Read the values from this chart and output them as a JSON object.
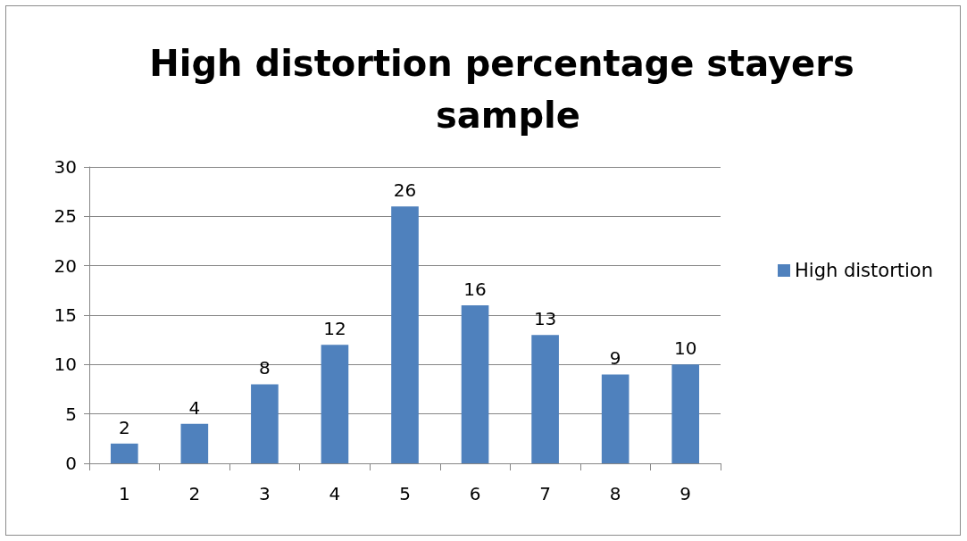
{
  "chart_data": {
    "type": "bar",
    "title": "High distortion percentage stayers sample",
    "categories": [
      "1",
      "2",
      "3",
      "4",
      "5",
      "6",
      "7",
      "8",
      "9"
    ],
    "series": [
      {
        "name": "High distortion",
        "color": "#4f81bd",
        "values": [
          2,
          4,
          8,
          12,
          26,
          16,
          13,
          9,
          10
        ]
      }
    ],
    "ylim": [
      0,
      30
    ],
    "yticks": [
      0,
      5,
      10,
      15,
      20,
      25,
      30
    ],
    "grid": "y",
    "legend": "right",
    "data_labels": true
  }
}
